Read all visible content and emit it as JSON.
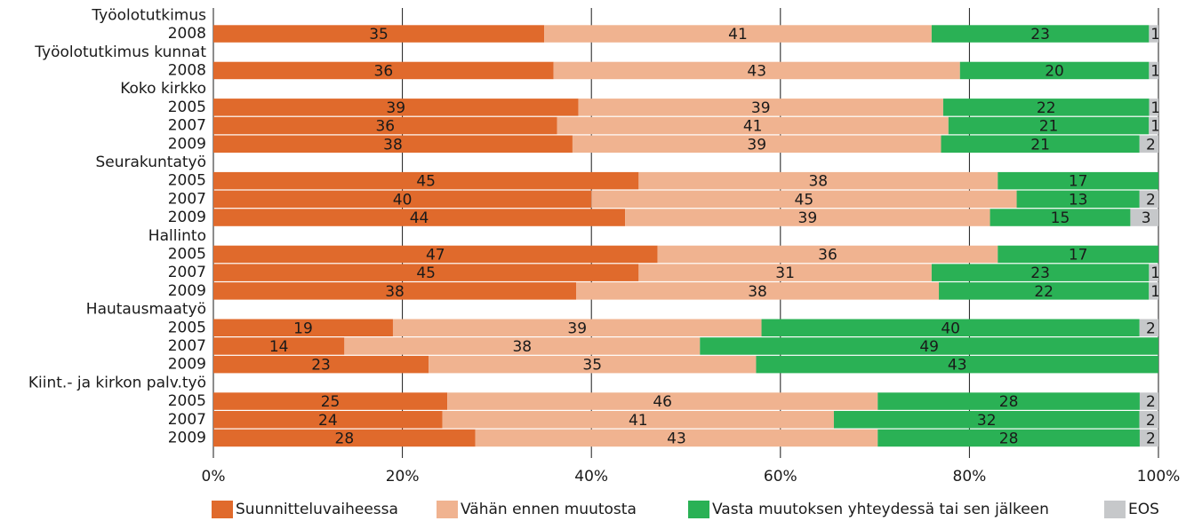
{
  "chart_data": {
    "type": "bar",
    "orientation": "horizontal",
    "stacked": "percent",
    "groups": [
      {
        "label": "Työolotutkimus",
        "rows": [
          {
            "label": "2008",
            "values": [
              35,
              41,
              23,
              1
            ]
          }
        ]
      },
      {
        "label": "Työolotutkimus kunnat",
        "rows": [
          {
            "label": "2008",
            "values": [
              36,
              43,
              20,
              1
            ]
          }
        ]
      },
      {
        "label": "Koko kirkko",
        "rows": [
          {
            "label": "2005",
            "values": [
              39,
              39,
              22,
              1
            ]
          },
          {
            "label": "2007",
            "values": [
              36,
              41,
              21,
              1
            ]
          },
          {
            "label": "2009",
            "values": [
              38,
              39,
              21,
              2
            ]
          }
        ]
      },
      {
        "label": "Seurakuntatyö",
        "rows": [
          {
            "label": "2005",
            "values": [
              45,
              38,
              17,
              0
            ]
          },
          {
            "label": "2007",
            "values": [
              40,
              45,
              13,
              2
            ]
          },
          {
            "label": "2009",
            "values": [
              44,
              39,
              15,
              3
            ]
          }
        ]
      },
      {
        "label": "Hallinto",
        "rows": [
          {
            "label": "2005",
            "values": [
              47,
              36,
              17,
              0
            ]
          },
          {
            "label": "2007",
            "values": [
              45,
              31,
              23,
              1
            ]
          },
          {
            "label": "2009",
            "values": [
              38,
              38,
              22,
              1
            ]
          }
        ]
      },
      {
        "label": "Hautausmaatyö",
        "rows": [
          {
            "label": "2005",
            "values": [
              19,
              39,
              40,
              2
            ]
          },
          {
            "label": "2007",
            "values": [
              14,
              38,
              49,
              0
            ]
          },
          {
            "label": "2009",
            "values": [
              23,
              35,
              43,
              0
            ]
          }
        ]
      },
      {
        "label": "Kiint.- ja kirkon palv.työ",
        "rows": [
          {
            "label": "2005",
            "values": [
              25,
              46,
              28,
              2
            ]
          },
          {
            "label": "2007",
            "values": [
              24,
              41,
              32,
              2
            ]
          },
          {
            "label": "2009",
            "values": [
              28,
              43,
              28,
              2
            ]
          }
        ]
      }
    ],
    "series": [
      {
        "name": "Suunnitteluvaiheessa",
        "color": "#e06a2c"
      },
      {
        "name": "Vähän ennen muutosta",
        "color": "#f0b390"
      },
      {
        "name": "Vasta muutoksen yhteydessä tai sen jälkeen",
        "color": "#2ab155"
      },
      {
        "name": "EOS",
        "color": "#c6c8ca"
      }
    ],
    "xlim": [
      0,
      100
    ],
    "x_ticks": [
      "0%",
      "20%",
      "40%",
      "60%",
      "80%",
      "100%"
    ],
    "grid": "vertical",
    "legend": "bottom"
  }
}
